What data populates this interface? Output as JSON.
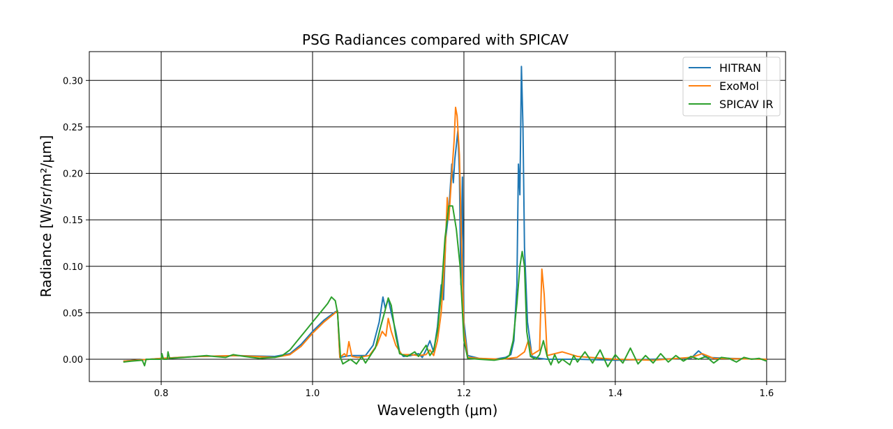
{
  "chart_data": {
    "type": "line",
    "title": "PSG Radiances compared with SPICAV",
    "xlabel": "Wavelength (μm)",
    "ylabel": "Radiance [W/sr/m²/μm]",
    "xlim": [
      0.705,
      1.625
    ],
    "ylim": [
      -0.024,
      0.331
    ],
    "xticks": [
      0.8,
      1.0,
      1.2,
      1.4,
      1.6
    ],
    "xtick_labels": [
      "0.8",
      "1.0",
      "1.2",
      "1.4",
      "1.6"
    ],
    "yticks": [
      0.0,
      0.05,
      0.1,
      0.15,
      0.2,
      0.25,
      0.3
    ],
    "ytick_labels": [
      "0.00",
      "0.05",
      "0.10",
      "0.15",
      "0.20",
      "0.25",
      "0.30"
    ],
    "grid": true,
    "legend_position": "top-right",
    "series": [
      {
        "name": "HITRAN",
        "color": "#1f77b4",
        "points": [
          [
            0.75,
            -0.002
          ],
          [
            0.8,
            0.001
          ],
          [
            0.85,
            0.003
          ],
          [
            0.9,
            0.004
          ],
          [
            0.95,
            0.003
          ],
          [
            0.97,
            0.006
          ],
          [
            0.985,
            0.016
          ],
          [
            1.0,
            0.03
          ],
          [
            1.015,
            0.042
          ],
          [
            1.03,
            0.051
          ],
          [
            1.033,
            0.052
          ],
          [
            1.036,
            0.002
          ],
          [
            1.05,
            0.004
          ],
          [
            1.07,
            0.004
          ],
          [
            1.08,
            0.015
          ],
          [
            1.088,
            0.04
          ],
          [
            1.093,
            0.067
          ],
          [
            1.096,
            0.055
          ],
          [
            1.1,
            0.065
          ],
          [
            1.104,
            0.05
          ],
          [
            1.11,
            0.03
          ],
          [
            1.115,
            0.008
          ],
          [
            1.12,
            0.003
          ],
          [
            1.13,
            0.004
          ],
          [
            1.14,
            0.006
          ],
          [
            1.145,
            0.002
          ],
          [
            1.15,
            0.01
          ],
          [
            1.155,
            0.02
          ],
          [
            1.16,
            0.008
          ],
          [
            1.165,
            0.035
          ],
          [
            1.17,
            0.08
          ],
          [
            1.173,
            0.064
          ],
          [
            1.176,
            0.13
          ],
          [
            1.18,
            0.16
          ],
          [
            1.184,
            0.21
          ],
          [
            1.186,
            0.19
          ],
          [
            1.188,
            0.215
          ],
          [
            1.19,
            0.23
          ],
          [
            1.192,
            0.246
          ],
          [
            1.194,
            0.2
          ],
          [
            1.196,
            0.08
          ],
          [
            1.198,
            0.196
          ],
          [
            1.2,
            0.04
          ],
          [
            1.205,
            0.004
          ],
          [
            1.22,
            0.001
          ],
          [
            1.24,
            0.0
          ],
          [
            1.255,
            0.002
          ],
          [
            1.262,
            0.005
          ],
          [
            1.266,
            0.02
          ],
          [
            1.27,
            0.08
          ],
          [
            1.272,
            0.21
          ],
          [
            1.274,
            0.177
          ],
          [
            1.276,
            0.315
          ],
          [
            1.278,
            0.25
          ],
          [
            1.28,
            0.12
          ],
          [
            1.284,
            0.04
          ],
          [
            1.29,
            0.003
          ],
          [
            1.3,
            0.001
          ],
          [
            1.31,
            0.0
          ],
          [
            1.35,
            0.0
          ],
          [
            1.4,
            -0.001
          ],
          [
            1.45,
            0.0
          ],
          [
            1.5,
            0.001
          ],
          [
            1.51,
            0.009
          ],
          [
            1.52,
            0.002
          ],
          [
            1.55,
            0.001
          ],
          [
            1.6,
            0.0
          ]
        ]
      },
      {
        "name": "ExoMol",
        "color": "#ff7f0e",
        "points": [
          [
            0.75,
            -0.002
          ],
          [
            0.8,
            0.001
          ],
          [
            0.85,
            0.003
          ],
          [
            0.9,
            0.004
          ],
          [
            0.95,
            0.002
          ],
          [
            0.97,
            0.005
          ],
          [
            0.985,
            0.014
          ],
          [
            1.0,
            0.028
          ],
          [
            1.015,
            0.04
          ],
          [
            1.03,
            0.05
          ],
          [
            1.033,
            0.052
          ],
          [
            1.036,
            0.002
          ],
          [
            1.042,
            0.006
          ],
          [
            1.045,
            0.003
          ],
          [
            1.048,
            0.019
          ],
          [
            1.052,
            0.003
          ],
          [
            1.06,
            0.002
          ],
          [
            1.075,
            0.004
          ],
          [
            1.085,
            0.015
          ],
          [
            1.092,
            0.03
          ],
          [
            1.097,
            0.025
          ],
          [
            1.1,
            0.044
          ],
          [
            1.104,
            0.03
          ],
          [
            1.11,
            0.015
          ],
          [
            1.118,
            0.005
          ],
          [
            1.13,
            0.005
          ],
          [
            1.14,
            0.004
          ],
          [
            1.15,
            0.005
          ],
          [
            1.155,
            0.01
          ],
          [
            1.16,
            0.004
          ],
          [
            1.165,
            0.02
          ],
          [
            1.17,
            0.05
          ],
          [
            1.175,
            0.11
          ],
          [
            1.178,
            0.174
          ],
          [
            1.18,
            0.15
          ],
          [
            1.184,
            0.2
          ],
          [
            1.187,
            0.235
          ],
          [
            1.189,
            0.271
          ],
          [
            1.191,
            0.262
          ],
          [
            1.194,
            0.22
          ],
          [
            1.197,
            0.12
          ],
          [
            1.2,
            0.03
          ],
          [
            1.205,
            0.002
          ],
          [
            1.22,
            0.001
          ],
          [
            1.25,
            0.0
          ],
          [
            1.27,
            0.002
          ],
          [
            1.28,
            0.008
          ],
          [
            1.285,
            0.02
          ],
          [
            1.29,
            0.005
          ],
          [
            1.3,
            0.01
          ],
          [
            1.303,
            0.097
          ],
          [
            1.306,
            0.07
          ],
          [
            1.31,
            0.004
          ],
          [
            1.33,
            0.008
          ],
          [
            1.35,
            0.003
          ],
          [
            1.4,
            0.0
          ],
          [
            1.45,
            -0.001
          ],
          [
            1.5,
            0.002
          ],
          [
            1.515,
            0.006
          ],
          [
            1.53,
            0.001
          ],
          [
            1.6,
            0.0
          ]
        ]
      },
      {
        "name": "SPICAV IR",
        "color": "#2ca02c",
        "points": [
          [
            0.75,
            -0.003
          ],
          [
            0.76,
            -0.002
          ],
          [
            0.775,
            -0.001
          ],
          [
            0.778,
            -0.007
          ],
          [
            0.78,
            0.0
          ],
          [
            0.8,
            0.0
          ],
          [
            0.801,
            0.006
          ],
          [
            0.803,
            0.0
          ],
          [
            0.808,
            0.0
          ],
          [
            0.809,
            0.008
          ],
          [
            0.811,
            0.001
          ],
          [
            0.83,
            0.002
          ],
          [
            0.86,
            0.004
          ],
          [
            0.87,
            0.003
          ],
          [
            0.885,
            0.002
          ],
          [
            0.895,
            0.005
          ],
          [
            0.91,
            0.003
          ],
          [
            0.93,
            0.001
          ],
          [
            0.95,
            0.002
          ],
          [
            0.96,
            0.004
          ],
          [
            0.97,
            0.01
          ],
          [
            0.98,
            0.02
          ],
          [
            0.99,
            0.03
          ],
          [
            1.0,
            0.04
          ],
          [
            1.01,
            0.05
          ],
          [
            1.02,
            0.06
          ],
          [
            1.025,
            0.067
          ],
          [
            1.03,
            0.063
          ],
          [
            1.033,
            0.05
          ],
          [
            1.037,
            0.002
          ],
          [
            1.04,
            -0.005
          ],
          [
            1.05,
            0.0
          ],
          [
            1.058,
            -0.005
          ],
          [
            1.065,
            0.003
          ],
          [
            1.07,
            -0.004
          ],
          [
            1.078,
            0.006
          ],
          [
            1.083,
            0.012
          ],
          [
            1.09,
            0.035
          ],
          [
            1.095,
            0.05
          ],
          [
            1.1,
            0.066
          ],
          [
            1.104,
            0.058
          ],
          [
            1.11,
            0.025
          ],
          [
            1.115,
            0.006
          ],
          [
            1.125,
            0.003
          ],
          [
            1.135,
            0.008
          ],
          [
            1.14,
            0.003
          ],
          [
            1.15,
            0.015
          ],
          [
            1.155,
            0.004
          ],
          [
            1.16,
            0.01
          ],
          [
            1.165,
            0.03
          ],
          [
            1.17,
            0.07
          ],
          [
            1.175,
            0.13
          ],
          [
            1.18,
            0.165
          ],
          [
            1.185,
            0.165
          ],
          [
            1.19,
            0.14
          ],
          [
            1.195,
            0.1
          ],
          [
            1.2,
            0.02
          ],
          [
            1.205,
            0.001
          ],
          [
            1.22,
            0.0
          ],
          [
            1.24,
            -0.001
          ],
          [
            1.255,
            0.001
          ],
          [
            1.26,
            0.004
          ],
          [
            1.265,
            0.02
          ],
          [
            1.27,
            0.06
          ],
          [
            1.274,
            0.1
          ],
          [
            1.277,
            0.116
          ],
          [
            1.28,
            0.1
          ],
          [
            1.283,
            0.03
          ],
          [
            1.288,
            0.003
          ],
          [
            1.295,
            0.0
          ],
          [
            1.3,
            0.005
          ],
          [
            1.305,
            0.02
          ],
          [
            1.31,
            0.003
          ],
          [
            1.315,
            -0.006
          ],
          [
            1.32,
            0.005
          ],
          [
            1.325,
            -0.004
          ],
          [
            1.33,
            0.0
          ],
          [
            1.34,
            -0.006
          ],
          [
            1.345,
            0.004
          ],
          [
            1.35,
            -0.003
          ],
          [
            1.36,
            0.008
          ],
          [
            1.37,
            -0.004
          ],
          [
            1.38,
            0.01
          ],
          [
            1.39,
            -0.008
          ],
          [
            1.4,
            0.005
          ],
          [
            1.41,
            -0.004
          ],
          [
            1.42,
            0.012
          ],
          [
            1.43,
            -0.005
          ],
          [
            1.44,
            0.004
          ],
          [
            1.45,
            -0.004
          ],
          [
            1.46,
            0.006
          ],
          [
            1.47,
            -0.003
          ],
          [
            1.48,
            0.004
          ],
          [
            1.49,
            -0.002
          ],
          [
            1.5,
            0.003
          ],
          [
            1.51,
            0.0
          ],
          [
            1.52,
            0.003
          ],
          [
            1.53,
            -0.004
          ],
          [
            1.54,
            0.002
          ],
          [
            1.55,
            0.001
          ],
          [
            1.56,
            -0.003
          ],
          [
            1.57,
            0.002
          ],
          [
            1.58,
            0.0
          ],
          [
            1.59,
            0.001
          ],
          [
            1.6,
            -0.002
          ]
        ]
      }
    ]
  }
}
